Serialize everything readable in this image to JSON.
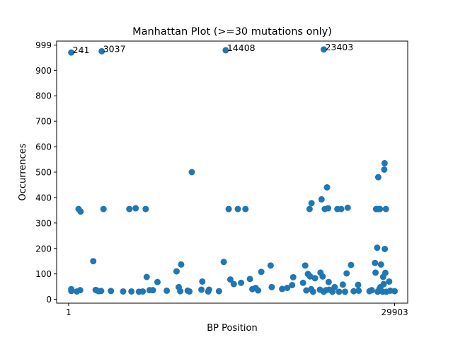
{
  "chart_data": {
    "type": "scatter",
    "title": "Manhattan Plot (>=30 mutations only)",
    "xlabel": "BP Position",
    "ylabel": "Occurrences",
    "xlim": [
      -1100,
      31100
    ],
    "ylim": [
      -15,
      1015
    ],
    "x_ticks": [
      {
        "value": 1,
        "label": "1"
      },
      {
        "value": 29903,
        "label": "29903"
      }
    ],
    "y_ticks": [
      {
        "value": 0,
        "label": "0"
      },
      {
        "value": 100,
        "label": "100"
      },
      {
        "value": 200,
        "label": "200"
      },
      {
        "value": 300,
        "label": "300"
      },
      {
        "value": 400,
        "label": "400"
      },
      {
        "value": 500,
        "label": "500"
      },
      {
        "value": 600,
        "label": "600"
      },
      {
        "value": 700,
        "label": "700"
      },
      {
        "value": 800,
        "label": "800"
      },
      {
        "value": 900,
        "label": "900"
      },
      {
        "value": 999,
        "label": "999"
      }
    ],
    "grid": false,
    "marker_color": "#1f77b4",
    "annotations": [
      {
        "text": "241",
        "x": 241,
        "y": 970
      },
      {
        "text": "3037",
        "x": 3037,
        "y": 975
      },
      {
        "text": "14408",
        "x": 14408,
        "y": 979
      },
      {
        "text": "23403",
        "x": 23403,
        "y": 982
      }
    ],
    "points": [
      {
        "x": 241,
        "y": 970
      },
      {
        "x": 3037,
        "y": 975
      },
      {
        "x": 14408,
        "y": 979
      },
      {
        "x": 23403,
        "y": 982
      },
      {
        "x": 241,
        "y": 40
      },
      {
        "x": 250,
        "y": 33
      },
      {
        "x": 760,
        "y": 31
      },
      {
        "x": 1059,
        "y": 36
      },
      {
        "x": 913,
        "y": 355
      },
      {
        "x": 1100,
        "y": 345
      },
      {
        "x": 2260,
        "y": 150
      },
      {
        "x": 2480,
        "y": 37
      },
      {
        "x": 2600,
        "y": 35
      },
      {
        "x": 2750,
        "y": 32
      },
      {
        "x": 2980,
        "y": 33
      },
      {
        "x": 3200,
        "y": 355
      },
      {
        "x": 3880,
        "y": 33
      },
      {
        "x": 5000,
        "y": 31
      },
      {
        "x": 5570,
        "y": 355
      },
      {
        "x": 5760,
        "y": 31
      },
      {
        "x": 6150,
        "y": 358
      },
      {
        "x": 6450,
        "y": 30
      },
      {
        "x": 6800,
        "y": 31
      },
      {
        "x": 7070,
        "y": 355
      },
      {
        "x": 7160,
        "y": 88
      },
      {
        "x": 7430,
        "y": 36
      },
      {
        "x": 7730,
        "y": 36
      },
      {
        "x": 8150,
        "y": 68
      },
      {
        "x": 9000,
        "y": 34
      },
      {
        "x": 9900,
        "y": 110
      },
      {
        "x": 10100,
        "y": 48
      },
      {
        "x": 10240,
        "y": 32
      },
      {
        "x": 10320,
        "y": 137
      },
      {
        "x": 10920,
        "y": 34
      },
      {
        "x": 11080,
        "y": 31
      },
      {
        "x": 11300,
        "y": 500
      },
      {
        "x": 12180,
        "y": 38
      },
      {
        "x": 12260,
        "y": 70
      },
      {
        "x": 12800,
        "y": 31
      },
      {
        "x": 12880,
        "y": 38
      },
      {
        "x": 13790,
        "y": 32
      },
      {
        "x": 14230,
        "y": 147
      },
      {
        "x": 14680,
        "y": 355
      },
      {
        "x": 14830,
        "y": 78
      },
      {
        "x": 15150,
        "y": 60
      },
      {
        "x": 15520,
        "y": 355
      },
      {
        "x": 15820,
        "y": 65
      },
      {
        "x": 16220,
        "y": 355
      },
      {
        "x": 16630,
        "y": 80
      },
      {
        "x": 16850,
        "y": 40
      },
      {
        "x": 17150,
        "y": 45
      },
      {
        "x": 17380,
        "y": 35
      },
      {
        "x": 17670,
        "y": 108
      },
      {
        "x": 18530,
        "y": 133
      },
      {
        "x": 18630,
        "y": 48
      },
      {
        "x": 19580,
        "y": 41
      },
      {
        "x": 20050,
        "y": 45
      },
      {
        "x": 20500,
        "y": 56
      },
      {
        "x": 20600,
        "y": 87
      },
      {
        "x": 21500,
        "y": 65
      },
      {
        "x": 21700,
        "y": 133
      },
      {
        "x": 21800,
        "y": 35
      },
      {
        "x": 21950,
        "y": 100
      },
      {
        "x": 22100,
        "y": 355
      },
      {
        "x": 22150,
        "y": 90
      },
      {
        "x": 22250,
        "y": 40
      },
      {
        "x": 22280,
        "y": 378
      },
      {
        "x": 22420,
        "y": 30
      },
      {
        "x": 22600,
        "y": 83
      },
      {
        "x": 23050,
        "y": 38
      },
      {
        "x": 23100,
        "y": 105
      },
      {
        "x": 23200,
        "y": 393
      },
      {
        "x": 23300,
        "y": 90
      },
      {
        "x": 23400,
        "y": 30
      },
      {
        "x": 23500,
        "y": 355
      },
      {
        "x": 23600,
        "y": 36
      },
      {
        "x": 23700,
        "y": 440
      },
      {
        "x": 23800,
        "y": 358
      },
      {
        "x": 23850,
        "y": 68
      },
      {
        "x": 23900,
        "y": 38
      },
      {
        "x": 24200,
        "y": 30
      },
      {
        "x": 24400,
        "y": 48
      },
      {
        "x": 24650,
        "y": 355
      },
      {
        "x": 24800,
        "y": 30
      },
      {
        "x": 25000,
        "y": 355
      },
      {
        "x": 25150,
        "y": 58
      },
      {
        "x": 25350,
        "y": 30
      },
      {
        "x": 25500,
        "y": 102
      },
      {
        "x": 25600,
        "y": 360
      },
      {
        "x": 25900,
        "y": 135
      },
      {
        "x": 26150,
        "y": 32
      },
      {
        "x": 26550,
        "y": 57
      },
      {
        "x": 26600,
        "y": 34
      },
      {
        "x": 27600,
        "y": 32
      },
      {
        "x": 27800,
        "y": 36
      },
      {
        "x": 28100,
        "y": 143
      },
      {
        "x": 28150,
        "y": 105
      },
      {
        "x": 28200,
        "y": 355
      },
      {
        "x": 28250,
        "y": 355
      },
      {
        "x": 28300,
        "y": 203
      },
      {
        "x": 28350,
        "y": 30
      },
      {
        "x": 28400,
        "y": 480
      },
      {
        "x": 28450,
        "y": 355
      },
      {
        "x": 28500,
        "y": 40
      },
      {
        "x": 28550,
        "y": 355
      },
      {
        "x": 28600,
        "y": 48
      },
      {
        "x": 28650,
        "y": 137
      },
      {
        "x": 28800,
        "y": 30
      },
      {
        "x": 28850,
        "y": 88
      },
      {
        "x": 28900,
        "y": 60
      },
      {
        "x": 28950,
        "y": 510
      },
      {
        "x": 28980,
        "y": 535
      },
      {
        "x": 29000,
        "y": 198
      },
      {
        "x": 29050,
        "y": 104
      },
      {
        "x": 29100,
        "y": 355
      },
      {
        "x": 29150,
        "y": 30
      },
      {
        "x": 29400,
        "y": 70
      },
      {
        "x": 29500,
        "y": 34
      },
      {
        "x": 29900,
        "y": 32
      }
    ]
  }
}
